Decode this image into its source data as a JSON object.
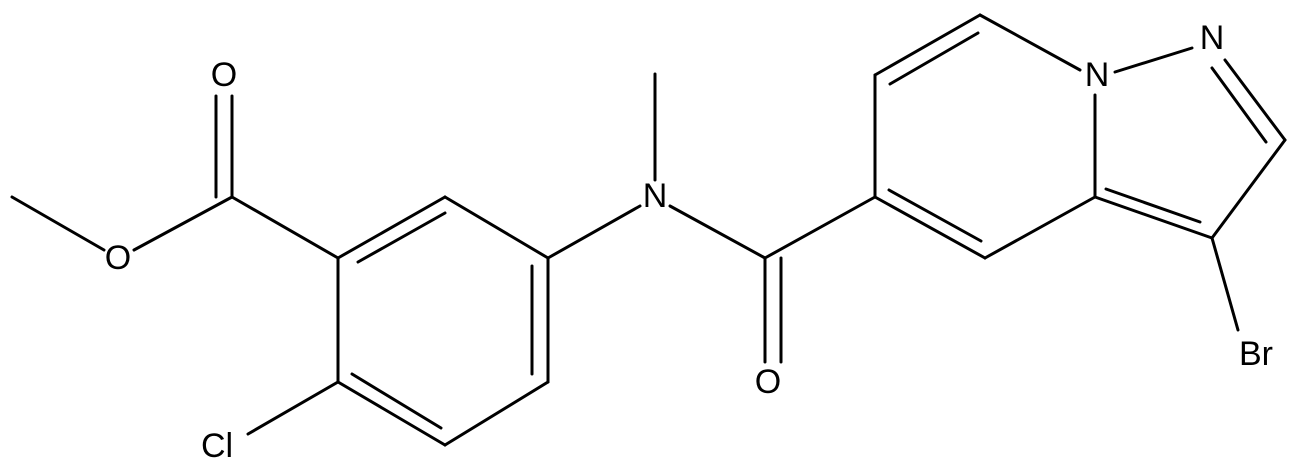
{
  "atoms": [
    {
      "label": "O"
    },
    {
      "label": "O"
    },
    {
      "label": "Cl"
    },
    {
      "label": "N"
    },
    {
      "label": "O"
    },
    {
      "label": "N"
    },
    {
      "label": "N"
    },
    {
      "label": "Br"
    }
  ]
}
